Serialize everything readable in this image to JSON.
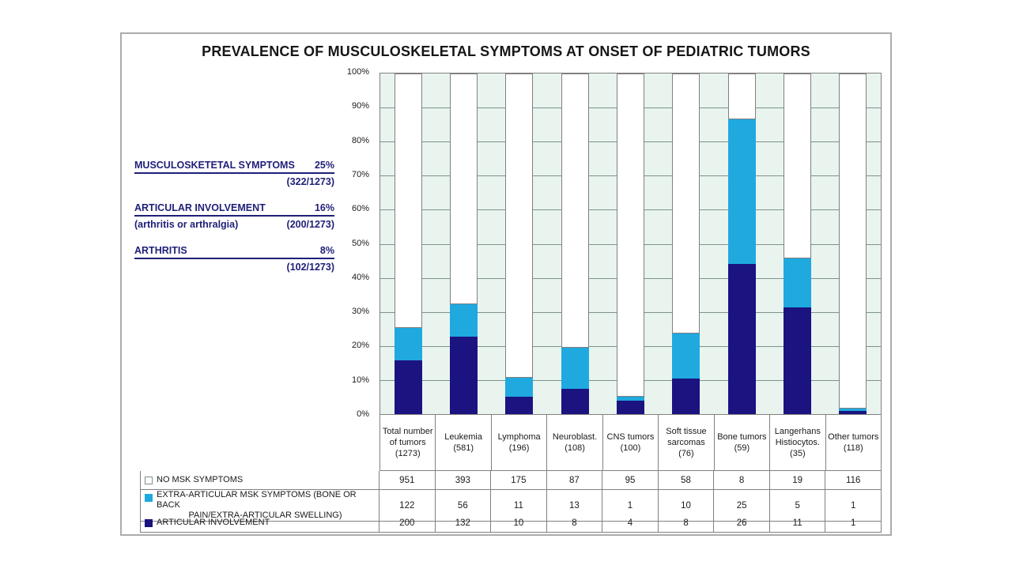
{
  "title": "PREVALENCE OF MUSCULOSKELETAL SYMPTOMS AT ONSET OF PEDIATRIC TUMORS",
  "annotations": [
    {
      "label": "MUSCULOSKETETAL SYMPTOMS",
      "value": "25%",
      "sub_label": "",
      "sub_value": "(322/1273)"
    },
    {
      "label": "ARTICULAR INVOLVEMENT",
      "value": "16%",
      "sub_label": "(arthritis or arthralgia)",
      "sub_value": "(200/1273)"
    },
    {
      "label": "ARTHRITIS",
      "value": "8%",
      "sub_label": "",
      "sub_value": "(102/1273)"
    }
  ],
  "colors": {
    "navy": "#1A1380",
    "cyan": "#1FA9DF",
    "white": "#FFFFFF",
    "plot_background": "#E9F4EF",
    "gridline": "#7E938C",
    "table_border": "#808080",
    "annotation_text": "#1F1F78"
  },
  "chart_data": {
    "type": "bar",
    "stacked": true,
    "normalized": "percent",
    "title": "PREVALENCE OF MUSCULOSKELETAL SYMPTOMS AT ONSET OF PEDIATRIC TUMORS",
    "categories": [
      "Total number of tumors (1273)",
      "Leukemia (581)",
      "Lymphoma (196)",
      "Neuroblast. (108)",
      "CNS tumors (100)",
      "Soft tissue sarcomas (76)",
      "Bone tumors (59)",
      "Langerhans Histiocytos. (35)",
      "Other tumors (118)"
    ],
    "series": [
      {
        "name": "ARTICULAR INVOLVEMENT",
        "color": "#1A1380",
        "values": [
          200,
          132,
          10,
          8,
          4,
          8,
          26,
          11,
          1
        ]
      },
      {
        "name": "EXTRA-ARTICULAR MSK SYMPTOMS (BONE OR BACK PAIN/EXTRA-ARTICULAR SWELLING)",
        "color": "#1FA9DF",
        "values": [
          122,
          56,
          11,
          13,
          1,
          10,
          25,
          5,
          1
        ]
      },
      {
        "name": "NO MSK SYMPTOMS",
        "color": "#FFFFFF",
        "values": [
          951,
          393,
          175,
          87,
          95,
          58,
          8,
          19,
          116
        ]
      }
    ],
    "y_axis": {
      "min": 0,
      "max": 100,
      "step": 10,
      "ticks": [
        "0%",
        "10%",
        "20%",
        "30%",
        "40%",
        "50%",
        "60%",
        "70%",
        "80%",
        "90%",
        "100%"
      ]
    },
    "grid": true,
    "legend_position": "table-left"
  },
  "data_table": {
    "rows": [
      {
        "series_index": 2,
        "swatch": "white-outline",
        "legend_lines": [
          "NO MSK SYMPTOMS"
        ]
      },
      {
        "series_index": 1,
        "swatch": "cyan",
        "legend_lines": [
          "EXTRA-ARTICULAR MSK SYMPTOMS (BONE OR BACK",
          "PAIN/EXTRA-ARTICULAR SWELLING)"
        ]
      },
      {
        "series_index": 0,
        "swatch": "navy",
        "legend_lines": [
          "ARTICULAR INVOLVEMENT"
        ]
      }
    ]
  }
}
